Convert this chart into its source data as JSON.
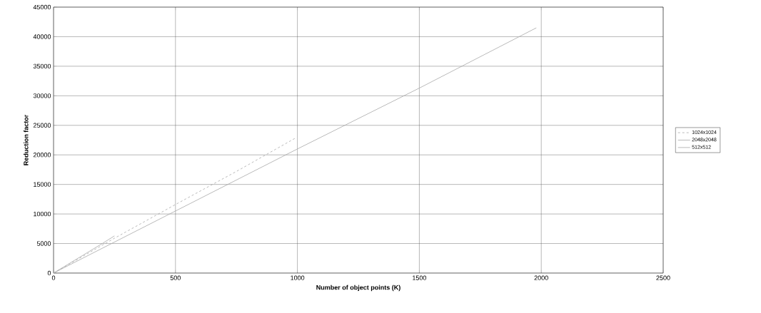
{
  "chart_data": {
    "type": "line",
    "xlabel": "Number of object points (K)",
    "ylabel": "Reduction factor",
    "xlim": [
      0,
      2500
    ],
    "xticks": [
      0,
      500,
      1000,
      1500,
      2000,
      2500
    ],
    "ylim": [
      0,
      45000
    ],
    "yticks": [
      0,
      5000,
      10000,
      15000,
      20000,
      25000,
      30000,
      35000,
      40000,
      45000
    ],
    "grid": true,
    "legend": "right",
    "marker": "none",
    "series": [
      {
        "name": "1024x1024",
        "color": "#a8a8a8",
        "line_style": "dashed",
        "x": [
          0,
          250,
          500,
          750,
          990
        ],
        "values": [
          0,
          5900,
          11600,
          17200,
          22800
        ]
      },
      {
        "name": "2048x2048",
        "color": "#a8a8a8",
        "line_style": "solid",
        "x": [
          0,
          500,
          1000,
          1500,
          1980
        ],
        "values": [
          0,
          10500,
          21000,
          31300,
          41500
        ]
      },
      {
        "name": "512x512",
        "color": "#a8a8a8",
        "line_style": "solid",
        "x": [
          0,
          100,
          200,
          250
        ],
        "values": [
          0,
          2500,
          5000,
          6300
        ]
      }
    ]
  }
}
